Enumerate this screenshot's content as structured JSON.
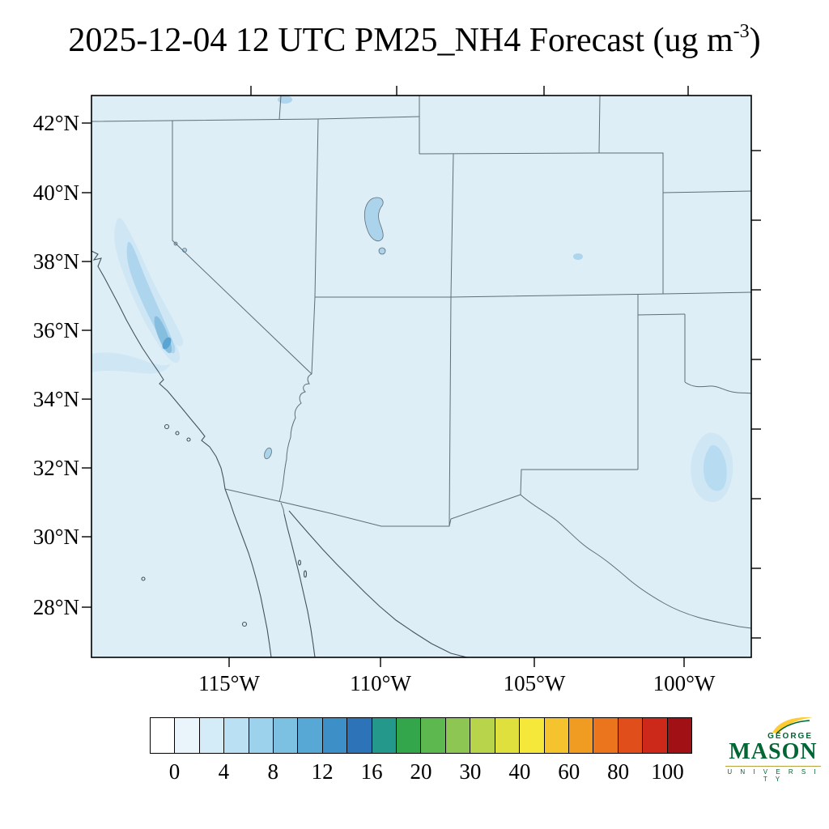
{
  "title": {
    "text": "2025-12-04 12 UTC PM25_NH4 Forecast (ug m",
    "superscript": "-3",
    "suffix": ")"
  },
  "map": {
    "lat_labels": [
      "42°N",
      "40°N",
      "38°N",
      "36°N",
      "34°N",
      "32°N",
      "30°N",
      "28°N"
    ],
    "lon_labels": [
      "115°W",
      "110°W",
      "105°W",
      "100°W"
    ],
    "background_color": "#deeef7",
    "state_border_color": "#5f6d76",
    "coastline_color": "#44535c"
  },
  "colorbar": {
    "tick_labels": [
      "0",
      "4",
      "8",
      "12",
      "16",
      "20",
      "30",
      "40",
      "60",
      "80",
      "100"
    ],
    "colors": [
      "#ffffff",
      "#e9f5fb",
      "#d3ecf8",
      "#b9e1f3",
      "#9cd2eb",
      "#7cc0e2",
      "#58a8d5",
      "#3d8fc8",
      "#2d73b8",
      "#24988a",
      "#33a64c",
      "#5db84f",
      "#8dc653",
      "#b8d44b",
      "#dfe03d",
      "#f5e83b",
      "#f5c32d",
      "#f09c23",
      "#ea751d",
      "#df4e1b",
      "#cc291b",
      "#a11015"
    ]
  },
  "logo": {
    "george": "GEORGE",
    "mason": "MASON",
    "university": "U N I V E R S I T Y",
    "green": "#006633",
    "gold": "#FFCC33"
  },
  "map_data": {
    "type": "filled-contour-forecast-map",
    "variable": "PM25_NH4",
    "units": "ug m-3",
    "valid_time": "2025-12-04 12 UTC",
    "lat_tick_range": [
      "28N",
      "42N"
    ],
    "lon_tick_range": [
      "115W",
      "100W"
    ],
    "regions_depicted": [
      {
        "name": "central-california-plume",
        "approx_value_range": [
          2,
          8
        ]
      },
      {
        "name": "west-texas-patch",
        "approx_value_range": [
          2,
          4
        ]
      },
      {
        "name": "eastern-colorado-spot",
        "approx_value_range": [
          2,
          4
        ]
      },
      {
        "name": "great-salt-lake-area",
        "approx_value_range": [
          2,
          4
        ]
      },
      {
        "name": "background",
        "approx_value_range": [
          0,
          2
        ]
      }
    ]
  }
}
